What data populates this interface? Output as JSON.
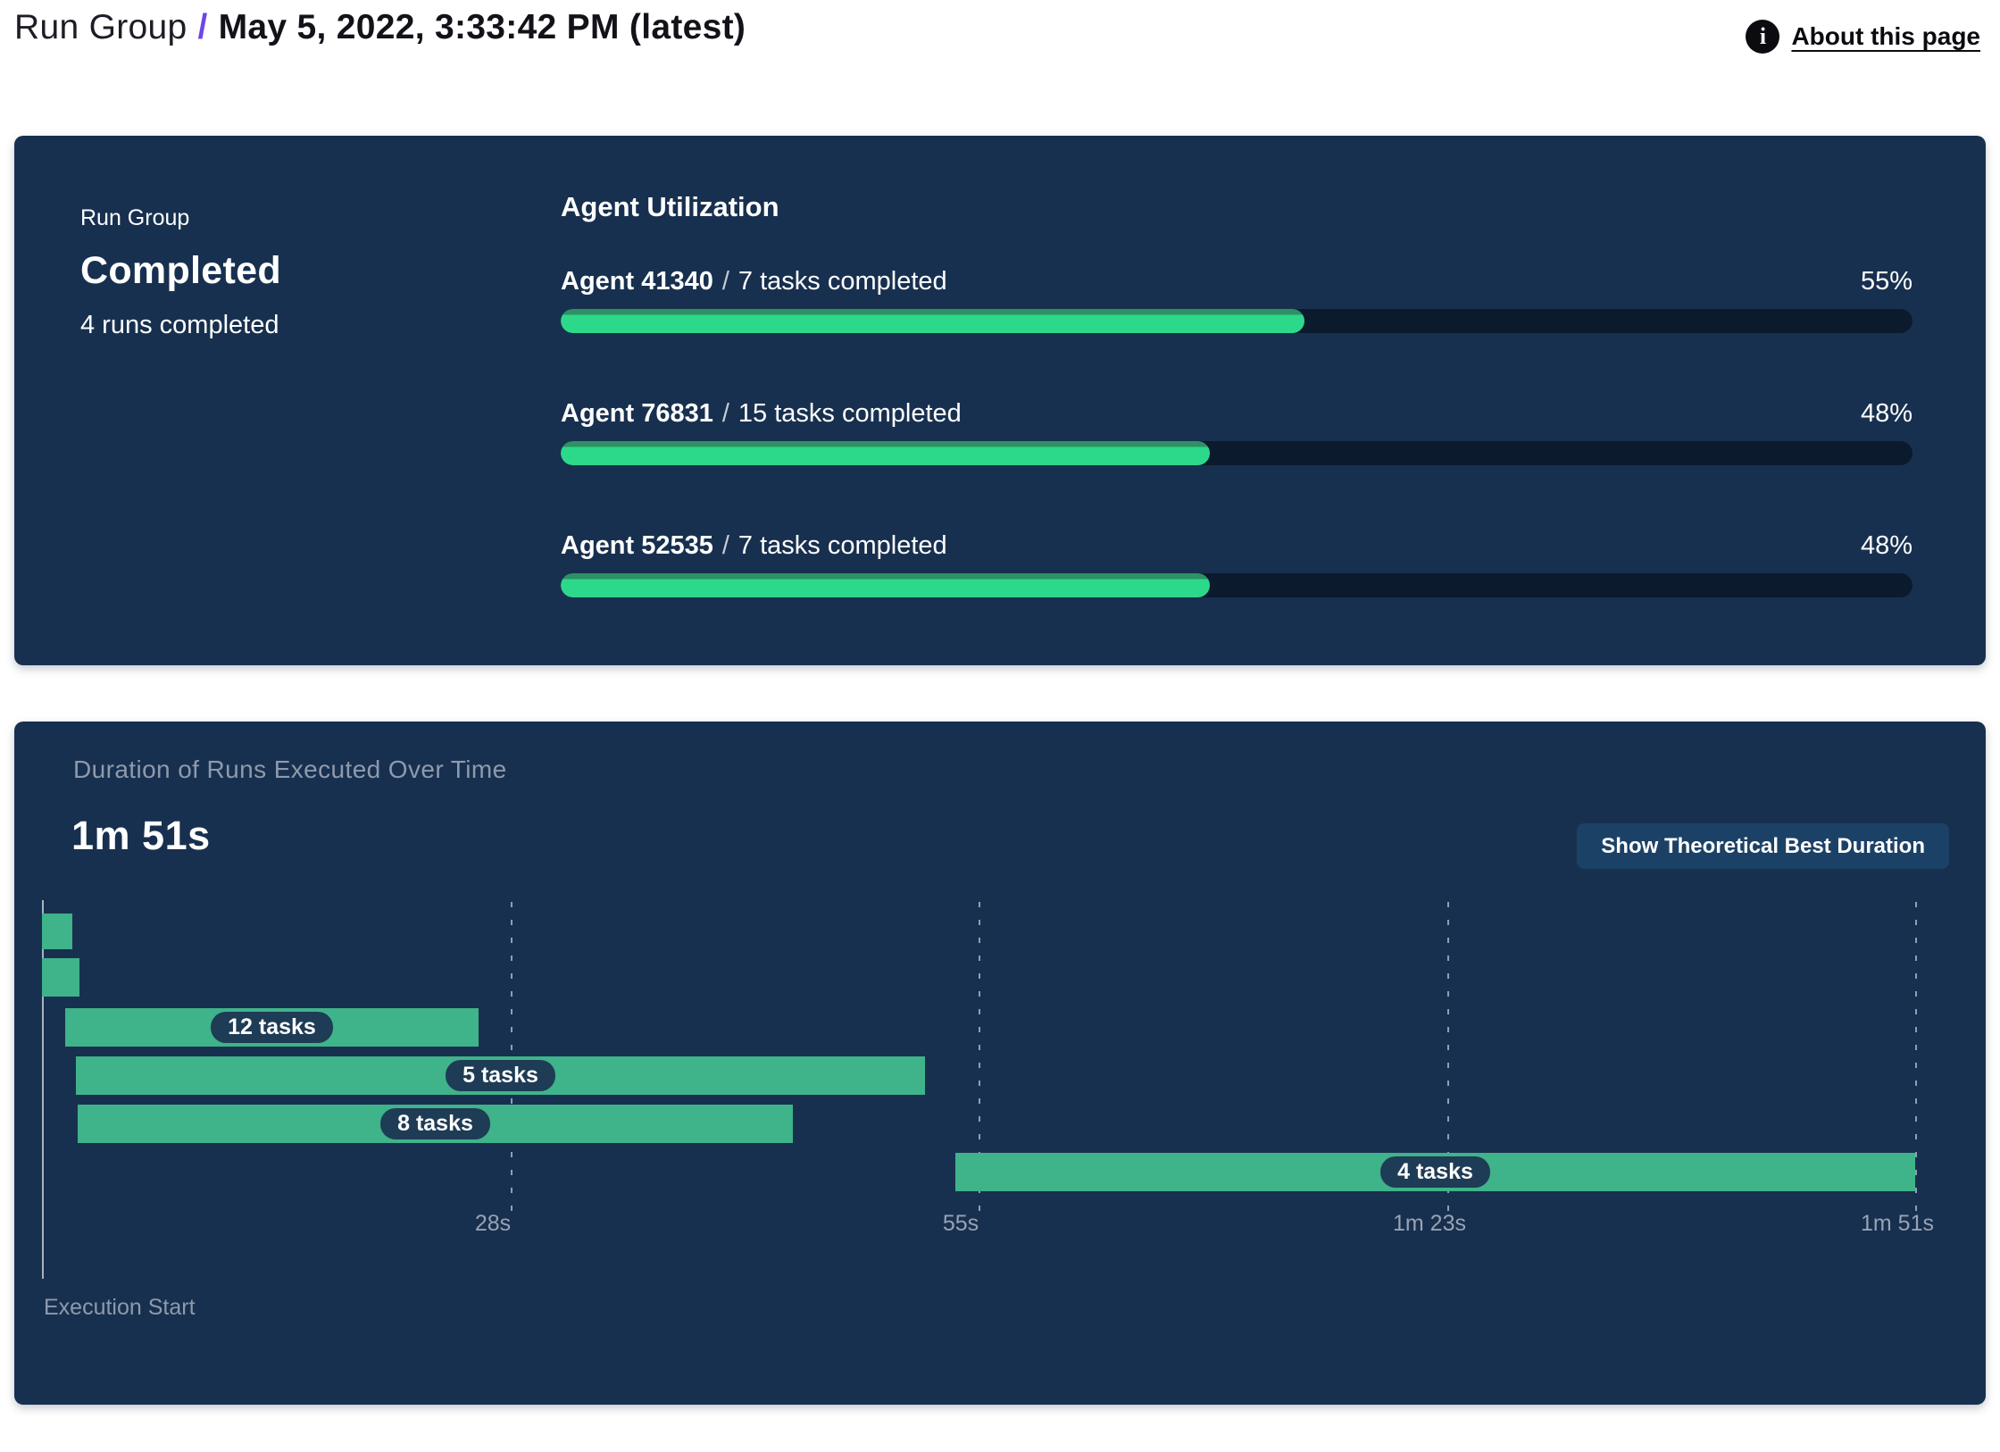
{
  "header": {
    "breadcrumb_root": "Run Group",
    "breadcrumb_separator": "/",
    "title": "May 5, 2022, 3:33:42 PM (latest)",
    "info_icon_glyph": "i",
    "about_link": "About this page"
  },
  "colors": {
    "panel_bg": "#18304f",
    "accent_purple": "#6e45e9",
    "progress_fill": "#2cd98a",
    "progress_fill_edge": "#2e9165",
    "progress_track": "#0c1a2d",
    "gantt_bar_green": "#3fb389",
    "pill_bg": "#1e3c55",
    "muted_text": "#8e9aac",
    "button_bg": "#1c4166"
  },
  "status_panel": {
    "label": "Run Group",
    "status": "Completed",
    "subtext": "4 runs completed",
    "utilization": {
      "title": "Agent Utilization",
      "separator": "/",
      "agents": [
        {
          "name": "Agent 41340",
          "tasks": "7 tasks completed",
          "percent_label": "55%",
          "percent": 55
        },
        {
          "name": "Agent 76831",
          "tasks": "15 tasks completed",
          "percent_label": "48%",
          "percent": 48
        },
        {
          "name": "Agent 52535",
          "tasks": "7 tasks completed",
          "percent_label": "48%",
          "percent": 48
        }
      ]
    }
  },
  "duration_panel": {
    "title": "Duration of Runs Executed Over Time",
    "total_duration": "1m 51s",
    "button_label": "Show Theoretical Best Duration",
    "execution_start_label": "Execution Start"
  },
  "chart_data": {
    "type": "gantt",
    "title": "Duration of Runs Executed Over Time",
    "total_duration_label": "1m 51s",
    "max_seconds": 111,
    "time_axis": {
      "tick_seconds": [
        27.75,
        55.5,
        83.25,
        111
      ],
      "tick_labels": [
        "28s",
        "55s",
        "1m 23s",
        "1m 51s"
      ],
      "start_label": "Execution Start",
      "grid": "dashed-vertical"
    },
    "runs": [
      {
        "row": 0,
        "start_s": 0,
        "end_s": 1.8,
        "label": ""
      },
      {
        "row": 1,
        "start_s": 0,
        "end_s": 2.2,
        "label": ""
      },
      {
        "row": 2,
        "start_s": 1.4,
        "end_s": 25.9,
        "label": "12 tasks"
      },
      {
        "row": 3,
        "start_s": 2.0,
        "end_s": 52.3,
        "label": "5 tasks"
      },
      {
        "row": 4,
        "start_s": 2.1,
        "end_s": 44.5,
        "label": "8 tasks"
      },
      {
        "row": 5,
        "start_s": 54.1,
        "end_s": 111.0,
        "label": "4 tasks"
      }
    ]
  }
}
